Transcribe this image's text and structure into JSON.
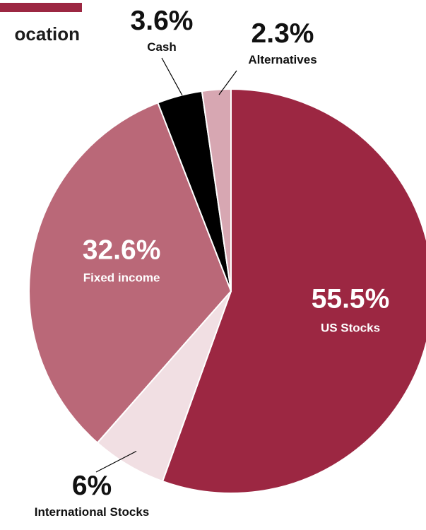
{
  "title": "ocation",
  "colors": {
    "accent": "#9c2742",
    "us_stocks": "#9c2742",
    "international_stocks": "#f1dfe3",
    "fixed_income": "#ba6878",
    "cash": "#000000",
    "alternatives": "#d7a7b2",
    "label_dark": "#111111",
    "label_light": "#ffffff"
  },
  "chart_data": {
    "type": "pie",
    "title": "",
    "start_angle_deg": 0,
    "direction": "clockwise",
    "slices": [
      {
        "label": "US Stocks",
        "value": 55.5,
        "pct_label": "55.5%",
        "color": "#9c2742"
      },
      {
        "label": "International Stocks",
        "value": 6,
        "pct_label": "6%",
        "color": "#f1dfe3"
      },
      {
        "label": "Fixed income",
        "value": 32.6,
        "pct_label": "32.6%",
        "color": "#ba6878"
      },
      {
        "label": "Cash",
        "value": 3.6,
        "pct_label": "3.6%",
        "color": "#000000"
      },
      {
        "label": "Alternatives",
        "value": 2.3,
        "pct_label": "2.3%",
        "color": "#d7a7b2"
      }
    ]
  }
}
